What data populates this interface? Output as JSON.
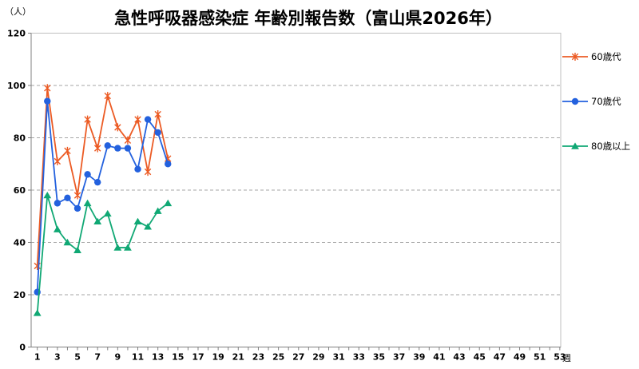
{
  "y_unit_label": "（人）",
  "x_unit_label": "週",
  "colors": {
    "background": "#FFFFFF",
    "grid": "#A6A6A6",
    "frame": "#BFBFBF",
    "axis": "#808080",
    "text": "#000000"
  },
  "chart_data": {
    "type": "line",
    "title": "急性呼吸器感染症 年齢別報告数（富山県2026年）",
    "y_label": "（人）",
    "x_label": "週",
    "ylim": [
      0,
      120
    ],
    "y_ticks": [
      0,
      20,
      40,
      60,
      80,
      100,
      120
    ],
    "x_range": [
      1,
      53
    ],
    "x_tick_labels": [
      1,
      3,
      5,
      7,
      9,
      11,
      13,
      15,
      17,
      19,
      21,
      23,
      25,
      27,
      29,
      31,
      33,
      35,
      37,
      39,
      41,
      43,
      45,
      47,
      49,
      51,
      53
    ],
    "grid": true,
    "legend_position": "right-outside",
    "x": [
      1,
      2,
      3,
      4,
      5,
      6,
      7,
      8,
      9,
      10,
      11,
      12,
      13,
      14
    ],
    "series": [
      {
        "name": "60歳代",
        "color": "#EC5B24",
        "marker": "asterisk",
        "values": [
          31,
          99,
          71,
          75,
          58,
          87,
          76,
          96,
          84,
          79,
          87,
          67,
          89,
          72
        ]
      },
      {
        "name": "70歳代",
        "color": "#2361DE",
        "marker": "circle",
        "values": [
          21,
          94,
          55,
          57,
          53,
          66,
          63,
          77,
          76,
          76,
          68,
          87,
          82,
          70
        ]
      },
      {
        "name": "80歳以上",
        "color": "#10A874",
        "marker": "triangle",
        "values": [
          13,
          58,
          45,
          40,
          37,
          55,
          48,
          51,
          38,
          38,
          48,
          46,
          52,
          55
        ]
      }
    ]
  }
}
